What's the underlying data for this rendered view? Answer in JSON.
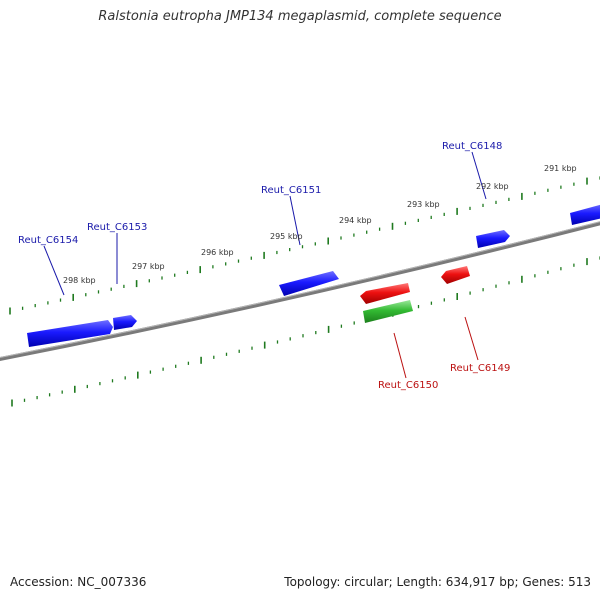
{
  "header": {
    "title": "Ralstonia eutropha JMP134 megaplasmid, complete sequence"
  },
  "footer": {
    "accession": "Accession: NC_007336",
    "summary": "Topology: circular; Length: 634,917 bp; Genes: 513"
  },
  "colors": {
    "forward_gene": "#1a1aff",
    "reverse_gene": "#ee1111",
    "rna_gene": "#33bb33",
    "backbone": "#7a7a7a",
    "ticks": "#1f7a1f",
    "forward_label": "#1a1aaa",
    "reverse_label": "#bb1111"
  },
  "scale_labels": [
    "298 kbp",
    "297 kbp",
    "296 kbp",
    "295 kbp",
    "294 kbp",
    "293 kbp",
    "292 kbp",
    "291 kbp"
  ],
  "genes": [
    {
      "label": "Reut_C6154",
      "strand": "forward"
    },
    {
      "label": "Reut_C6153",
      "strand": "forward"
    },
    {
      "label": "Reut_C6151",
      "strand": "forward"
    },
    {
      "label": "Reut_C6148",
      "strand": "forward"
    },
    {
      "label": "Reut_C6150",
      "strand": "reverse"
    },
    {
      "label": "Reut_C6149",
      "strand": "reverse"
    }
  ]
}
